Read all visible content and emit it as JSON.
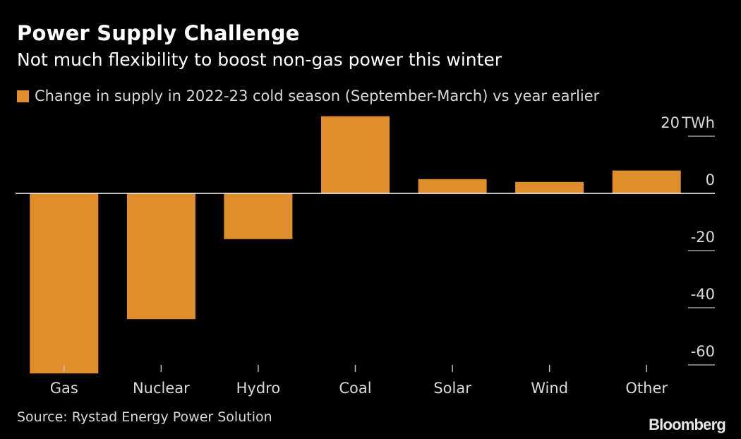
{
  "header": {
    "title": "Power Supply Challenge",
    "subtitle": "Not much flexibility to boost non-gas power this winter"
  },
  "legend": {
    "label": "Change in supply in 2022-23 cold season (September-March) vs year earlier"
  },
  "footer": {
    "source": "Source: Rystad Energy Power Solution",
    "brand": "Bloomberg"
  },
  "colors": {
    "background": "#000000",
    "bar": "#E08E2B",
    "text": "#ffffff",
    "axis": "#ffffff"
  },
  "chart_data": {
    "type": "bar",
    "title": "Power Supply Challenge",
    "subtitle": "Not much flexibility to boost non-gas power this winter",
    "categories": [
      "Gas",
      "Nuclear",
      "Hydro",
      "Coal",
      "Solar",
      "Wind",
      "Other"
    ],
    "series": [
      {
        "name": "Change in supply in 2022-23 cold season (September-March) vs year earlier",
        "values": [
          -63,
          -44,
          -16,
          27,
          5,
          4,
          8
        ]
      }
    ],
    "ylim": [
      -63,
      27
    ],
    "yticks": [
      20,
      0,
      -20,
      -40,
      -60
    ],
    "ytick_labels": [
      "20",
      "0",
      "-20",
      "-40",
      "-60"
    ],
    "yunit": "TWh",
    "xlabel": "",
    "ylabel": "",
    "legend_position": "top-left",
    "grid": false
  }
}
